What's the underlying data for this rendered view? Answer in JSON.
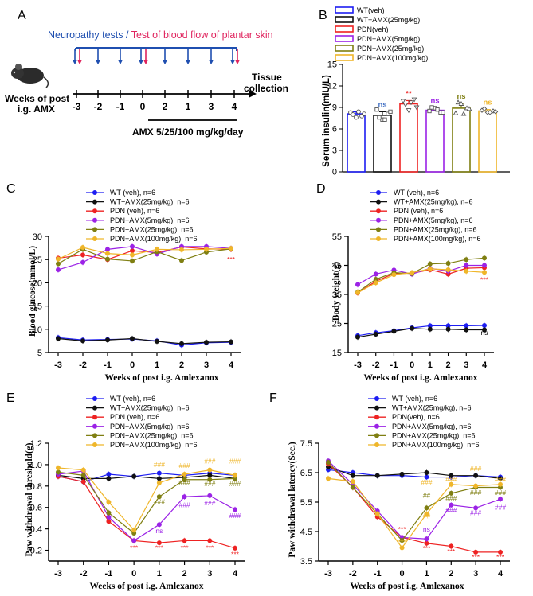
{
  "colors": {
    "wt": "#1d1df2",
    "wt_amx": "#111111",
    "pdn": "#ee2222",
    "pdn_amx5": "#9b22e6",
    "pdn_amx25": "#7f7f12",
    "pdn_amx100": "#efb62a"
  },
  "panelA": {
    "label": "A",
    "title_left": "Neuropathy tests",
    "title_sep": " / ",
    "title_right": "Test of blood flow of plantar skin",
    "weeks_label_1": "Weeks of post",
    "weeks_label_2": "i.g. AMX",
    "ticks": [
      "-3",
      "-2",
      "-1",
      "0",
      "2",
      "1",
      "3",
      "4"
    ],
    "end_label_1": "Tissue",
    "end_label_2": "collection",
    "treatment": "AMX 5/25/100 mg/kg/day"
  },
  "panelB": {
    "label": "B",
    "chart_data": {
      "type": "bar",
      "ylabel": "Serum insulin(mlU/L)",
      "ylim": [
        0,
        15
      ],
      "yticks": [
        "0",
        "3",
        "6",
        "9",
        "12",
        "15"
      ],
      "legend": [
        "WT(veh)",
        "WT+AMX(25mg/kg)",
        "PDN(veh)",
        "PDN+AMX(5mg/kg)",
        "PDN+AMX(25mg/kg)",
        "PDN+AMX(100mg/kg)"
      ],
      "values": [
        8.1,
        7.9,
        9.5,
        8.6,
        8.9,
        8.5
      ],
      "errors": [
        0.3,
        0.5,
        0.45,
        0.35,
        0.65,
        0.2
      ],
      "points": [
        [
          8.3,
          7.6,
          7.8,
          8.0,
          8.4,
          8.1
        ],
        [
          8.7,
          7.3,
          8.1,
          7.6,
          7.3,
          8.4
        ],
        [
          9.9,
          8.6,
          10.1,
          9.4,
          9.7,
          9.0
        ],
        [
          8.5,
          8.9,
          8.3,
          9.0,
          8.7,
          8.3
        ],
        [
          8.2,
          9.5,
          8.9,
          9.7,
          8.1,
          8.8
        ],
        [
          8.6,
          8.3,
          8.5,
          8.8,
          8.3,
          8.4
        ]
      ],
      "significance": [
        "",
        "ns",
        "**",
        "ns",
        "ns",
        "ns"
      ]
    }
  },
  "panelC": {
    "label": "C",
    "chart_data": {
      "type": "line",
      "ylabel": "Blood glucose(mmol/L)",
      "xlabel": "Weeks of post i.g. Amlexanox",
      "categories": [
        "-3",
        "-2",
        "-1",
        "0",
        "1",
        "2",
        "3",
        "4"
      ],
      "ylim": [
        5,
        30
      ],
      "yticks": [
        "5",
        "10",
        "15",
        "20",
        "25",
        "30"
      ],
      "series": [
        {
          "name": "WT (veh), n=6",
          "values": [
            8.2,
            7.7,
            7.8,
            7.9,
            7.5,
            6.6,
            7.1,
            7.2
          ]
        },
        {
          "name": "WT+AMX(25mg/kg), n=6",
          "values": [
            8.0,
            7.5,
            7.7,
            8.0,
            7.4,
            6.9,
            7.2,
            7.3
          ]
        },
        {
          "name": "PDN (veh), n=6",
          "values": [
            25.3,
            26.0,
            25.0,
            26.9,
            26.5,
            27.7,
            27.3,
            27.2
          ]
        },
        {
          "name": "PDN+AMX(5mg/kg), n=6",
          "values": [
            22.8,
            24.4,
            27.2,
            27.8,
            26.2,
            27.8,
            27.8,
            27.4
          ]
        },
        {
          "name": "PDN+AMX(25mg/kg), n=6",
          "values": [
            24.1,
            27.2,
            25.1,
            24.7,
            26.7,
            24.8,
            26.6,
            27.3
          ]
        },
        {
          "name": "PDN+AMX(100mg/kg), n=6",
          "values": [
            25.1,
            27.6,
            26.3,
            26.0,
            27.2,
            27.1,
            27.2,
            27.4
          ]
        }
      ],
      "annotations": [
        {
          "text": "***",
          "x": "4",
          "y": 24.5,
          "series": 2
        }
      ]
    }
  },
  "panelD": {
    "label": "D",
    "chart_data": {
      "type": "line",
      "ylabel": "Body weight(g)",
      "xlabel": "Weeks of post i.g. Amlexanox",
      "categories": [
        "-3",
        "-2",
        "-1",
        "0",
        "1",
        "2",
        "3",
        "4"
      ],
      "ylim": [
        15,
        55
      ],
      "yticks": [
        "15",
        "25",
        "35",
        "45",
        "55"
      ],
      "series": [
        {
          "name": "WT (veh), n=6",
          "values": [
            20.8,
            21.8,
            22.5,
            23.5,
            24.2,
            24.2,
            24.2,
            24.3
          ]
        },
        {
          "name": "WT+AMX(25mg/kg), n=6",
          "values": [
            20.3,
            21.3,
            22.3,
            23.3,
            23.0,
            23.0,
            22.8,
            22.8
          ]
        },
        {
          "name": "PDN (veh), n=6",
          "values": [
            35.5,
            39.5,
            42.2,
            42.3,
            43.5,
            42.0,
            44.0,
            44.2
          ]
        },
        {
          "name": "PDN+AMX(5mg/kg), n=6",
          "values": [
            38.4,
            42.0,
            43.4,
            42.0,
            44.0,
            43.0,
            45.0,
            45.0
          ]
        },
        {
          "name": "PDN+AMX(25mg/kg), n=6",
          "values": [
            35.8,
            40.2,
            42.5,
            42.2,
            45.5,
            45.7,
            47.0,
            47.5
          ]
        },
        {
          "name": "PDN+AMX(100mg/kg), n=6",
          "values": [
            35.6,
            39.0,
            41.8,
            42.5,
            43.8,
            43.5,
            43.0,
            42.6
          ]
        }
      ],
      "annotations": [
        {
          "text": "***",
          "x": "4",
          "y": 39.2,
          "series": 2
        },
        {
          "text": "ns",
          "x": "4",
          "y": 21.0,
          "series": 1
        }
      ]
    }
  },
  "panelE": {
    "label": "E",
    "chart_data": {
      "type": "line",
      "ylabel": "Paw withdrawal threshold(g)",
      "xlabel": "Weeks of post i.g. Amlexanox",
      "categories": [
        "-3",
        "-2",
        "-1",
        "0",
        "1",
        "2",
        "3",
        "4"
      ],
      "ylim": [
        0.1,
        1.2
      ],
      "yticks": [
        "0.2",
        "0.4",
        "0.6",
        "0.8",
        "1.0",
        "1.2"
      ],
      "series": [
        {
          "name": "WT (veh), n=6",
          "values": [
            0.89,
            0.84,
            0.91,
            0.89,
            0.92,
            0.9,
            0.92,
            0.9
          ]
        },
        {
          "name": "WT+AMX(25mg/kg), n=6",
          "values": [
            0.9,
            0.87,
            0.87,
            0.89,
            0.87,
            0.88,
            0.9,
            0.87
          ]
        },
        {
          "name": "PDN (veh), n=6",
          "values": [
            0.89,
            0.84,
            0.47,
            0.29,
            0.27,
            0.29,
            0.29,
            0.22
          ]
        },
        {
          "name": "PDN+AMX(5mg/kg), n=6",
          "values": [
            0.91,
            0.94,
            0.51,
            0.29,
            0.44,
            0.7,
            0.71,
            0.58
          ]
        },
        {
          "name": "PDN+AMX(25mg/kg), n=6",
          "values": [
            0.93,
            0.9,
            0.55,
            0.36,
            0.7,
            0.86,
            0.86,
            0.87
          ]
        },
        {
          "name": "PDN+AMX(100mg/kg), n=6",
          "values": [
            0.97,
            0.95,
            0.65,
            0.39,
            0.83,
            0.91,
            0.95,
            0.9
          ]
        }
      ],
      "annotations": [
        {
          "text": "***",
          "x": "0",
          "y": 0.2,
          "series": 2
        },
        {
          "text": "***",
          "x": "1",
          "y": 0.2,
          "series": 2
        },
        {
          "text": "***",
          "x": "2",
          "y": 0.2,
          "series": 2
        },
        {
          "text": "***",
          "x": "3",
          "y": 0.2,
          "series": 2
        },
        {
          "text": "***",
          "x": "4",
          "y": 0.14,
          "series": 2
        },
        {
          "text": "ns",
          "x": "1",
          "y": 0.36,
          "series": 3
        },
        {
          "text": "###",
          "x": "2",
          "y": 0.6,
          "series": 3
        },
        {
          "text": "###",
          "x": "3",
          "y": 0.62,
          "series": 3
        },
        {
          "text": "###",
          "x": "4",
          "y": 0.5,
          "series": 3
        },
        {
          "text": "###",
          "x": "1",
          "y": 0.63,
          "series": 4
        },
        {
          "text": "###",
          "x": "2",
          "y": 0.81,
          "series": 4
        },
        {
          "text": "###",
          "x": "3",
          "y": 0.8,
          "series": 4
        },
        {
          "text": "###",
          "x": "4",
          "y": 0.8,
          "series": 4
        },
        {
          "text": "###",
          "x": "1",
          "y": 0.98,
          "series": 5
        },
        {
          "text": "###",
          "x": "2",
          "y": 0.97,
          "series": 5
        },
        {
          "text": "###",
          "x": "3",
          "y": 1.01,
          "series": 5
        },
        {
          "text": "###",
          "x": "4",
          "y": 1.01,
          "series": 5
        }
      ]
    }
  },
  "panelF": {
    "label": "F",
    "chart_data": {
      "type": "line",
      "ylabel": "Paw withdrawal latency(Sec.)",
      "xlabel": "Weeks of post i.g. Amlexanox",
      "categories": [
        "-3",
        "-2",
        "-1",
        "0",
        "1",
        "2",
        "3",
        "4"
      ],
      "ylim": [
        3.5,
        7.5
      ],
      "yticks": [
        "3.5",
        "4.5",
        "5.5",
        "6.5",
        "7.5"
      ],
      "series": [
        {
          "name": "WT (veh), n=6",
          "values": [
            6.6,
            6.5,
            6.4,
            6.4,
            6.35,
            6.35,
            6.4,
            6.35
          ]
        },
        {
          "name": "WT+AMX(25mg/kg), n=6",
          "values": [
            6.7,
            6.4,
            6.4,
            6.45,
            6.5,
            6.4,
            6.4,
            6.3
          ]
        },
        {
          "name": "PDN(veh), n=6",
          "values": [
            6.8,
            6.0,
            5.0,
            4.3,
            4.1,
            4.0,
            3.8,
            3.8
          ]
        },
        {
          "name": "PDN+AMX(5mg/kg), n=6",
          "values": [
            6.9,
            6.1,
            5.2,
            4.3,
            4.25,
            5.4,
            5.3,
            5.6
          ]
        },
        {
          "name": "PDN+AMX(25mg/kg), n=6",
          "values": [
            6.85,
            6.0,
            5.1,
            4.2,
            5.3,
            5.8,
            6.0,
            6.0
          ]
        },
        {
          "name": "PDN+AMX(100mg/kg), n=6",
          "values": [
            6.3,
            6.2,
            5.1,
            3.95,
            5.1,
            6.1,
            6.05,
            6.1
          ]
        }
      ],
      "annotations": [
        {
          "text": "***",
          "x": "0",
          "y": 4.5,
          "series": 2
        },
        {
          "text": "***",
          "x": "1",
          "y": 3.85,
          "series": 2
        },
        {
          "text": "***",
          "x": "2",
          "y": 3.75,
          "series": 2
        },
        {
          "text": "***",
          "x": "3",
          "y": 3.55,
          "series": 2
        },
        {
          "text": "***",
          "x": "4",
          "y": 3.55,
          "series": 2
        },
        {
          "text": "***",
          "x": "0",
          "y": 4.05,
          "series": 5
        },
        {
          "text": "ns",
          "x": "1",
          "y": 4.5,
          "series": 3
        },
        {
          "text": "###",
          "x": "2",
          "y": 5.15,
          "series": 3
        },
        {
          "text": "###",
          "x": "3",
          "y": 5.05,
          "series": 3
        },
        {
          "text": "###",
          "x": "4",
          "y": 5.25,
          "series": 3
        },
        {
          "text": "##",
          "x": "1",
          "y": 5.65,
          "series": 4
        },
        {
          "text": "###",
          "x": "2",
          "y": 5.55,
          "series": 4
        },
        {
          "text": "###",
          "x": "3",
          "y": 5.75,
          "series": 4
        },
        {
          "text": "###",
          "x": "4",
          "y": 5.75,
          "series": 4
        },
        {
          "text": "##",
          "x": "1",
          "y": 4.95,
          "series": 5
        },
        {
          "text": "###",
          "x": "1",
          "y": 6.1,
          "series": 5
        },
        {
          "text": "###",
          "x": "2",
          "y": 6.2,
          "series": 5
        },
        {
          "text": "###",
          "x": "3",
          "y": 6.55,
          "series": 5
        },
        {
          "text": "###",
          "x": "4",
          "y": 6.2,
          "series": 5
        }
      ]
    }
  }
}
